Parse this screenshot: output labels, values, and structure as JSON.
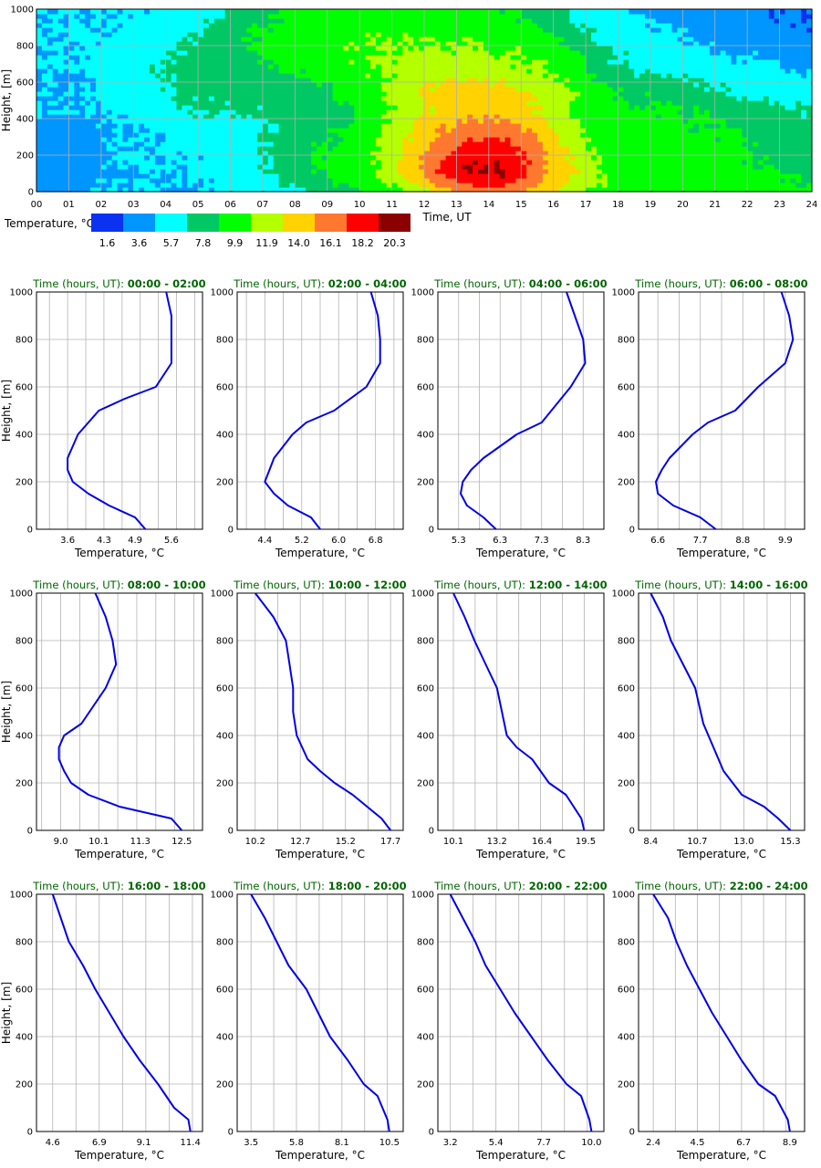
{
  "chart_data": [
    {
      "type": "heatmap",
      "xlabel": "Time, UT",
      "ylabel": "Height, [m]",
      "x_ticks": [
        "00",
        "01",
        "02",
        "03",
        "04",
        "05",
        "06",
        "07",
        "08",
        "09",
        "10",
        "11",
        "12",
        "13",
        "14",
        "15",
        "16",
        "17",
        "18",
        "19",
        "20",
        "21",
        "22",
        "23",
        "24"
      ],
      "y_ticks": [
        0,
        200,
        400,
        600,
        800,
        1000
      ],
      "xlim": [
        0,
        24
      ],
      "ylim": [
        0,
        1000
      ],
      "colorbar_label": "Temperature, °C",
      "colorbar_ticks": [
        "1.6",
        "3.6",
        "5.7",
        "7.8",
        "9.9",
        "11.9",
        "14.0",
        "16.1",
        "18.2",
        "20.3"
      ],
      "colorbar_colors": [
        "#0a32f0",
        "#0096ff",
        "#00ffff",
        "#00c864",
        "#00ff00",
        "#b4ff00",
        "#ffd200",
        "#ff7830",
        "#ff0000",
        "#8b0000"
      ],
      "grid": true,
      "heat_rows": [
        [
          3.2,
          3.2,
          3.6,
          3.6,
          3.6,
          3.6,
          5.0,
          5.0,
          6.0,
          7.5,
          8.5,
          10.0,
          13.0,
          15.5,
          15.5,
          13.0,
          10.5,
          9.5,
          9.0,
          9.0,
          8.8,
          8.8,
          8.5,
          8.2
        ],
        [
          2.8,
          2.8,
          3.6,
          3.6,
          3.6,
          4.0,
          5.0,
          6.2,
          7.5,
          8.5,
          9.8,
          12.5,
          16.8,
          18.5,
          18.5,
          15.0,
          12.5,
          9.8,
          9.0,
          8.8,
          8.8,
          8.5,
          8.0,
          7.5
        ],
        [
          2.4,
          2.8,
          3.6,
          3.6,
          4.0,
          4.0,
          5.2,
          6.2,
          7.6,
          8.2,
          9.8,
          12.5,
          15.5,
          17.5,
          17.2,
          15.0,
          11.5,
          9.5,
          8.8,
          8.8,
          8.5,
          8.2,
          7.5,
          6.5
        ],
        [
          3.0,
          3.2,
          3.6,
          3.6,
          4.6,
          4.8,
          5.0,
          6.0,
          7.0,
          8.0,
          9.5,
          11.8,
          14.0,
          15.0,
          15.0,
          13.5,
          10.5,
          9.0,
          8.5,
          8.2,
          8.0,
          8.0,
          7.0,
          6.2
        ],
        [
          3.5,
          3.6,
          3.6,
          4.6,
          5.6,
          6.0,
          6.0,
          6.2,
          6.5,
          7.0,
          9.0,
          11.0,
          12.5,
          13.5,
          13.0,
          12.0,
          10.0,
          8.5,
          8.0,
          8.0,
          7.6,
          6.8,
          6.2,
          6.0
        ],
        [
          3.6,
          3.6,
          4.5,
          4.8,
          6.0,
          6.2,
          6.2,
          6.6,
          7.0,
          8.5,
          9.0,
          11.5,
          12.5,
          13.0,
          12.5,
          11.5,
          10.0,
          8.5,
          7.5,
          7.0,
          6.2,
          5.5,
          5.2,
          4.6
        ],
        [
          3.6,
          3.8,
          4.8,
          5.5,
          6.2,
          6.8,
          7.0,
          7.5,
          8.5,
          9.2,
          10.0,
          10.5,
          11.0,
          11.0,
          10.5,
          10.0,
          9.2,
          6.5,
          5.5,
          5.2,
          5.0,
          4.5,
          4.0,
          3.5
        ],
        [
          3.6,
          3.8,
          4.5,
          5.0,
          5.8,
          7.0,
          7.8,
          8.5,
          9.2,
          9.6,
          10.0,
          10.0,
          10.2,
          10.2,
          10.0,
          9.5,
          8.2,
          6.2,
          5.0,
          4.5,
          3.8,
          3.2,
          3.0,
          2.5
        ],
        [
          3.6,
          3.6,
          3.8,
          4.2,
          5.2,
          6.2,
          7.4,
          8.2,
          9.0,
          9.5,
          9.6,
          9.4,
          9.2,
          9.2,
          8.8,
          8.0,
          6.5,
          5.0,
          4.0,
          3.6,
          3.0,
          2.6,
          2.2,
          1.8
        ],
        [
          3.6,
          3.6,
          3.8,
          4.0,
          4.6,
          5.6,
          6.8,
          7.8,
          8.5,
          8.8,
          8.8,
          8.6,
          8.4,
          8.4,
          8.0,
          7.0,
          5.5,
          4.2,
          3.5,
          2.8,
          2.4,
          2.0,
          1.8,
          1.6
        ]
      ]
    },
    {
      "type": "line",
      "title_prefix": "Time (hours, UT): ",
      "title_time": "00:00 - 02:00",
      "xlabel": "Temperature, °C",
      "ylabel": "Height, [m]",
      "xlim": [
        3.0,
        6.2
      ],
      "x_ticks": [
        "3.6",
        "4.3",
        "4.9",
        "5.6"
      ],
      "y_ticks": [
        0,
        200,
        400,
        600,
        800,
        1000
      ],
      "grid": true,
      "x": [
        5.1,
        4.9,
        4.4,
        4.0,
        3.7,
        3.6,
        3.6,
        3.7,
        3.8,
        4.0,
        4.2,
        4.7,
        5.3,
        5.6,
        5.6,
        5.6,
        5.5
      ],
      "y": [
        0,
        50,
        100,
        150,
        200,
        250,
        300,
        350,
        400,
        450,
        500,
        550,
        600,
        700,
        800,
        900,
        1000
      ]
    },
    {
      "type": "line",
      "title_prefix": "Time (hours, UT): ",
      "title_time": "02:00 - 04:00",
      "xlabel": "Temperature, °C",
      "ylabel": "",
      "xlim": [
        3.8,
        7.4
      ],
      "x_ticks": [
        "4.4",
        "5.2",
        "6.0",
        "6.8"
      ],
      "y_ticks": [
        0,
        200,
        400,
        600,
        800,
        1000
      ],
      "grid": true,
      "x": [
        5.6,
        5.4,
        4.9,
        4.6,
        4.4,
        4.5,
        4.6,
        4.8,
        5.0,
        5.3,
        5.9,
        6.6,
        6.9,
        6.9,
        6.85,
        6.7
      ],
      "y": [
        0,
        50,
        100,
        150,
        200,
        250,
        300,
        350,
        400,
        450,
        500,
        600,
        700,
        800,
        900,
        1000
      ]
    },
    {
      "type": "line",
      "title_prefix": "Time (hours, UT): ",
      "title_time": "04:00 - 06:00",
      "xlabel": "Temperature, °C",
      "ylabel": "",
      "xlim": [
        4.8,
        8.8
      ],
      "x_ticks": [
        "5.3",
        "6.3",
        "7.3",
        "8.3"
      ],
      "y_ticks": [
        0,
        200,
        400,
        600,
        800,
        1000
      ],
      "grid": true,
      "x": [
        6.2,
        5.9,
        5.5,
        5.35,
        5.4,
        5.6,
        5.9,
        6.3,
        6.7,
        7.3,
        8.0,
        8.35,
        8.3,
        8.1,
        7.9
      ],
      "y": [
        0,
        50,
        100,
        150,
        200,
        250,
        300,
        350,
        400,
        450,
        600,
        700,
        800,
        900,
        1000
      ]
    },
    {
      "type": "line",
      "title_prefix": "Time (hours, UT): ",
      "title_time": "06:00 - 08:00",
      "xlabel": "Temperature, °C",
      "ylabel": "",
      "xlim": [
        6.1,
        10.4
      ],
      "x_ticks": [
        "6.6",
        "7.7",
        "8.8",
        "9.9"
      ],
      "y_ticks": [
        0,
        200,
        400,
        600,
        800,
        1000
      ],
      "grid": true,
      "x": [
        8.1,
        7.7,
        7.0,
        6.6,
        6.55,
        6.7,
        6.9,
        7.2,
        7.5,
        7.9,
        8.6,
        9.2,
        9.9,
        10.1,
        10.0,
        9.8
      ],
      "y": [
        0,
        50,
        100,
        150,
        200,
        250,
        300,
        350,
        400,
        450,
        500,
        600,
        700,
        800,
        900,
        1000
      ]
    },
    {
      "type": "line",
      "title_prefix": "Time (hours, UT): ",
      "title_time": "08:00 - 10:00",
      "xlabel": "Temperature, °C",
      "ylabel": "Height, [m]",
      "xlim": [
        8.3,
        13.1
      ],
      "x_ticks": [
        "9.0",
        "10.1",
        "11.3",
        "12.5"
      ],
      "y_ticks": [
        0,
        200,
        400,
        600,
        800,
        1000
      ],
      "grid": true,
      "x": [
        12.5,
        12.2,
        10.7,
        9.8,
        9.3,
        9.1,
        8.95,
        8.95,
        9.1,
        9.6,
        10.3,
        10.6,
        10.5,
        10.3,
        10.0
      ],
      "y": [
        0,
        50,
        100,
        150,
        200,
        250,
        300,
        350,
        400,
        450,
        600,
        700,
        800,
        900,
        1000
      ]
    },
    {
      "type": "line",
      "title_prefix": "Time (hours, UT): ",
      "title_time": "10:00 - 12:00",
      "xlabel": "Temperature, °C",
      "ylabel": "",
      "xlim": [
        9.2,
        18.4
      ],
      "x_ticks": [
        "10.2",
        "12.7",
        "15.2",
        "17.7"
      ],
      "y_ticks": [
        0,
        200,
        400,
        600,
        800,
        1000
      ],
      "grid": true,
      "x": [
        17.7,
        17.2,
        15.6,
        14.6,
        13.8,
        13.1,
        12.5,
        12.3,
        12.3,
        12.1,
        11.9,
        11.2,
        10.2
      ],
      "y": [
        0,
        50,
        150,
        200,
        250,
        300,
        400,
        500,
        600,
        700,
        800,
        900,
        1000
      ]
    },
    {
      "type": "line",
      "title_prefix": "Time (hours, UT): ",
      "title_time": "12:00 - 14:00",
      "xlabel": "Temperature, °C",
      "ylabel": "",
      "xlim": [
        9.0,
        20.8
      ],
      "x_ticks": [
        "10.1",
        "13.2",
        "16.4",
        "19.5"
      ],
      "y_ticks": [
        0,
        200,
        400,
        600,
        800,
        1000
      ],
      "grid": true,
      "x": [
        19.4,
        19.2,
        18.1,
        16.9,
        15.7,
        14.6,
        13.9,
        13.2,
        12.4,
        11.6,
        10.9,
        10.1
      ],
      "y": [
        0,
        50,
        150,
        200,
        300,
        350,
        400,
        600,
        700,
        800,
        900,
        1000
      ]
    },
    {
      "type": "line",
      "title_prefix": "Time (hours, UT): ",
      "title_time": "14:00 - 16:00",
      "xlabel": "Temperature, °C",
      "ylabel": "",
      "xlim": [
        7.8,
        16.0
      ],
      "x_ticks": [
        "8.4",
        "10.7",
        "13.0",
        "15.3"
      ],
      "y_ticks": [
        0,
        200,
        400,
        600,
        800,
        1000
      ],
      "grid": true,
      "x": [
        15.3,
        14.7,
        14.0,
        12.9,
        12.0,
        11.5,
        11.0,
        10.6,
        10.0,
        9.4,
        9.0,
        8.4
      ],
      "y": [
        0,
        50,
        100,
        150,
        250,
        350,
        450,
        600,
        700,
        800,
        900,
        1000
      ]
    },
    {
      "type": "line",
      "title_prefix": "Time (hours, UT): ",
      "title_time": "16:00 - 18:00",
      "xlabel": "Temperature, °C",
      "ylabel": "Height, [m]",
      "xlim": [
        3.8,
        12.0
      ],
      "x_ticks": [
        "4.6",
        "6.9",
        "9.1",
        "11.4"
      ],
      "y_ticks": [
        0,
        200,
        400,
        600,
        800,
        1000
      ],
      "grid": true,
      "x": [
        11.4,
        11.3,
        10.6,
        9.8,
        8.9,
        8.1,
        7.4,
        6.7,
        6.1,
        5.4,
        4.6
      ],
      "y": [
        0,
        50,
        100,
        200,
        300,
        400,
        500,
        600,
        700,
        800,
        1000
      ]
    },
    {
      "type": "line",
      "title_prefix": "Time (hours, UT): ",
      "title_time": "18:00 - 20:00",
      "xlabel": "Temperature, °C",
      "ylabel": "",
      "xlim": [
        2.8,
        11.2
      ],
      "x_ticks": [
        "3.5",
        "5.8",
        "8.1",
        "10.5"
      ],
      "y_ticks": [
        0,
        200,
        400,
        600,
        800,
        1000
      ],
      "grid": true,
      "x": [
        10.5,
        10.4,
        9.9,
        9.2,
        8.4,
        7.5,
        6.9,
        6.3,
        5.4,
        4.8,
        4.2,
        3.5
      ],
      "y": [
        0,
        50,
        150,
        200,
        300,
        400,
        500,
        600,
        700,
        800,
        900,
        1000
      ]
    },
    {
      "type": "line",
      "title_prefix": "Time (hours, UT): ",
      "title_time": "20:00 - 22:00",
      "xlabel": "Temperature, °C",
      "ylabel": "",
      "xlim": [
        2.6,
        10.6
      ],
      "x_ticks": [
        "3.2",
        "5.4",
        "7.7",
        "10.0"
      ],
      "y_ticks": [
        0,
        200,
        400,
        600,
        800,
        1000
      ],
      "grid": true,
      "x": [
        10.0,
        9.9,
        9.5,
        8.8,
        7.9,
        7.1,
        6.3,
        5.6,
        4.9,
        4.4,
        3.8,
        3.2
      ],
      "y": [
        0,
        50,
        150,
        200,
        300,
        400,
        500,
        600,
        700,
        800,
        900,
        1000
      ]
    },
    {
      "type": "line",
      "title_prefix": "Time (hours, UT): ",
      "title_time": "22:00 - 24:00",
      "xlabel": "Temperature, °C",
      "ylabel": "",
      "xlim": [
        1.7,
        9.6
      ],
      "x_ticks": [
        "2.4",
        "4.5",
        "6.7",
        "8.9"
      ],
      "y_ticks": [
        0,
        200,
        400,
        600,
        800,
        1000
      ],
      "grid": true,
      "x": [
        8.9,
        8.8,
        8.2,
        7.4,
        6.6,
        5.9,
        5.2,
        4.6,
        4.0,
        3.5,
        3.1,
        2.4
      ],
      "y": [
        0,
        50,
        150,
        200,
        300,
        400,
        500,
        600,
        700,
        800,
        900,
        1000
      ]
    }
  ]
}
